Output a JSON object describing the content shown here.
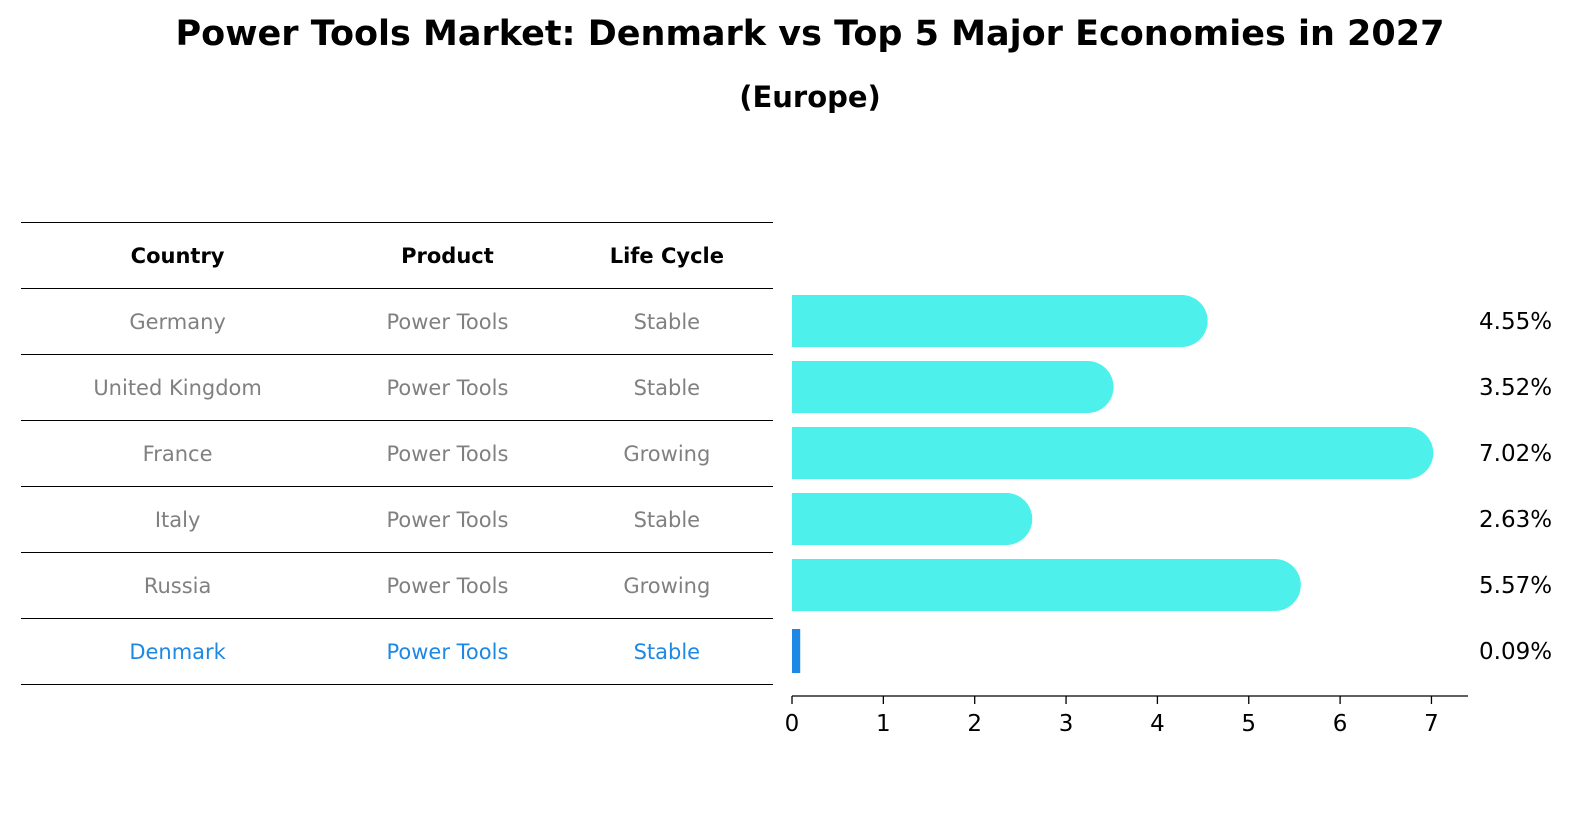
{
  "title": "Power Tools Market: Denmark vs Top 5 Major Economies in 2027",
  "subtitle": "(Europe)",
  "table": {
    "headers": [
      "Country",
      "Product",
      "Life Cycle"
    ],
    "rows": [
      [
        "Germany",
        "Power Tools",
        "Stable"
      ],
      [
        "United Kingdom",
        "Power Tools",
        "Stable"
      ],
      [
        "France",
        "Power Tools",
        "Growing"
      ],
      [
        "Italy",
        "Power Tools",
        "Stable"
      ],
      [
        "Russia",
        "Power Tools",
        "Growing"
      ],
      [
        "Denmark",
        "Power Tools",
        "Stable"
      ]
    ],
    "highlight_row": 5
  },
  "chart_data": {
    "type": "bar",
    "orientation": "horizontal",
    "categories": [
      "Germany",
      "United Kingdom",
      "France",
      "Italy",
      "Russia",
      "Denmark"
    ],
    "values": [
      4.55,
      3.52,
      7.02,
      2.63,
      5.57,
      0.09
    ],
    "value_labels": [
      "4.55%",
      "3.52%",
      "7.02%",
      "2.63%",
      "5.57%",
      "0.09%"
    ],
    "xticks": [
      0,
      1,
      2,
      3,
      4,
      5,
      6,
      7
    ],
    "xlim": [
      0,
      7.4
    ],
    "grid": false,
    "colors": {
      "bar": "#4df0ea",
      "highlight": "#1e88e5"
    }
  }
}
